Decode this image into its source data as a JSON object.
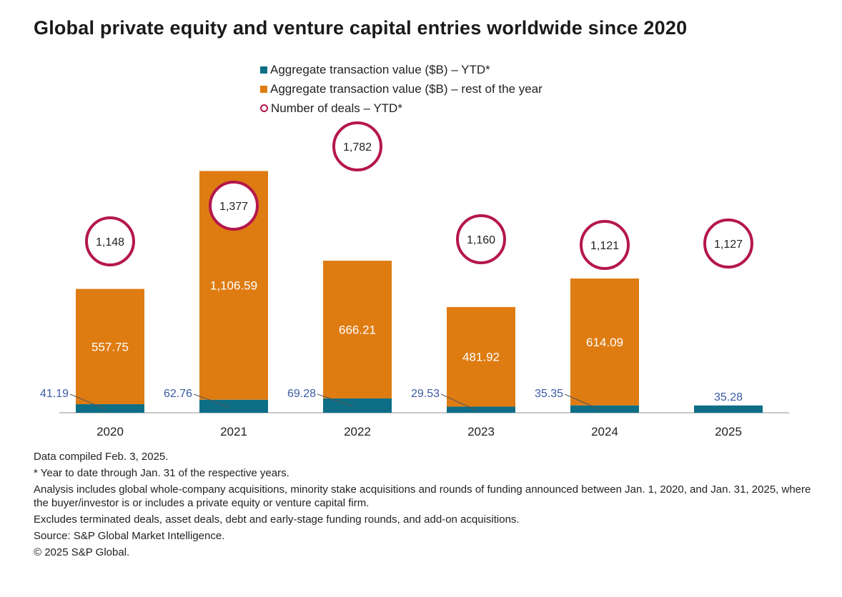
{
  "chart_data": {
    "type": "bar",
    "stacked": true,
    "title": "Global private equity and venture capital entries worldwide since 2020",
    "categories": [
      "2020",
      "2021",
      "2022",
      "2023",
      "2024",
      "2025"
    ],
    "series": [
      {
        "name": "Aggregate transaction value ($B) – YTD*",
        "color": "#0e6e86",
        "values": [
          41.19,
          62.76,
          69.28,
          29.53,
          35.35,
          35.28
        ],
        "labels": [
          "41.19",
          "62.76",
          "69.28",
          "29.53",
          "35.35",
          "35.28"
        ]
      },
      {
        "name": "Aggregate transaction value ($B) – rest of the year",
        "color": "#de7c12",
        "values": [
          557.75,
          1106.59,
          666.21,
          481.92,
          614.09,
          null
        ],
        "labels": [
          "557.75",
          "1,106.59",
          "666.21",
          "481.92",
          "614.09",
          ""
        ]
      }
    ],
    "deals": {
      "name": "Number of deals – YTD*",
      "color": "#b5174b",
      "values": [
        1148,
        1377,
        1782,
        1160,
        1121,
        1127
      ],
      "labels": [
        "1,148",
        "1,377",
        "1,782",
        "1,160",
        "1,121",
        "1,127"
      ]
    },
    "legend_position": "top-center",
    "grid": false
  },
  "notes": [
    "Data compiled Feb. 3, 2025.",
    "* Year to date through Jan. 31 of the respective years.",
    "Analysis includes global whole-company acquisitions, minority stake acquisitions and rounds of funding announced between Jan. 1, 2020, and Jan. 31, 2025, where the buyer/investor is or includes a private equity or venture capital firm.",
    "Excludes terminated deals, asset deals, debt and early-stage funding rounds, and add-on acquisitions.",
    "Source: S&P Global Market Intelligence.",
    "© 2025 S&P Global."
  ]
}
